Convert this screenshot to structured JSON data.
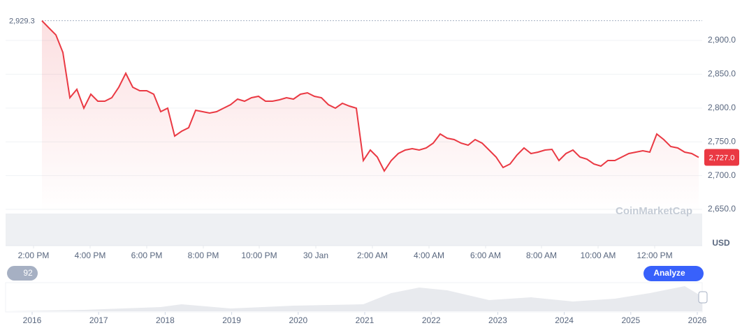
{
  "chart_data": {
    "type": "line",
    "values": [
      2929.3,
      2918.6,
      2908.3,
      2882.4,
      2815.3,
      2827.7,
      2799.8,
      2820.5,
      2810.1,
      2810.1,
      2815.3,
      2830.8,
      2851.5,
      2830.8,
      2825.6,
      2825.6,
      2820.5,
      2794.6,
      2799.8,
      2758.5,
      2765.7,
      2770.9,
      2796.7,
      2794.6,
      2792.6,
      2794.6,
      2799.8,
      2805.0,
      2813.2,
      2810.1,
      2815.3,
      2817.4,
      2810.1,
      2810.1,
      2812.2,
      2815.3,
      2813.2,
      2820.5,
      2822.5,
      2817.4,
      2815.3,
      2805.0,
      2799.8,
      2807.0,
      2802.9,
      2799.8,
      2722.3,
      2737.8,
      2727.5,
      2706.8,
      2722.3,
      2732.7,
      2737.8,
      2739.9,
      2737.8,
      2740.9,
      2748.1,
      2761.6,
      2755.4,
      2753.3,
      2748.1,
      2745.1,
      2753.3,
      2748.1,
      2737.8,
      2727.5,
      2712.0,
      2717.2,
      2730.6,
      2740.9,
      2732.7,
      2734.7,
      2737.8,
      2738.9,
      2722.3,
      2732.7,
      2737.8,
      2727.5,
      2724.4,
      2717.2,
      2714.1,
      2722.3,
      2722.3,
      2727.5,
      2732.7,
      2734.7,
      2736.8,
      2734.7,
      2761.6,
      2753.3,
      2743.0,
      2740.9,
      2734.7,
      2732.7,
      2727.0
    ],
    "color": "#ea3943",
    "xlim": [
      -5.2,
      94.5
    ],
    "xticks": [
      {
        "value": -1.2,
        "label": "2:00 PM"
      },
      {
        "value": 6.9,
        "label": "4:00 PM"
      },
      {
        "value": 15,
        "label": "6:00 PM"
      },
      {
        "value": 23.1,
        "label": "8:00 PM"
      },
      {
        "value": 31.1,
        "label": "10:00 PM"
      },
      {
        "value": 39.2,
        "label": "30 Jan"
      },
      {
        "value": 47.3,
        "label": "2:00 AM"
      },
      {
        "value": 55.4,
        "label": "4:00 AM"
      },
      {
        "value": 63.5,
        "label": "6:00 AM"
      },
      {
        "value": 71.5,
        "label": "8:00 AM"
      },
      {
        "value": 79.6,
        "label": "10:00 AM"
      },
      {
        "value": 87.7,
        "label": "12:00 PM"
      }
    ],
    "ylim": [
      2596.3,
      2949.6
    ],
    "yticks": [
      {
        "value": 2650,
        "label": "2,650.0"
      },
      {
        "value": 2700,
        "label": "2,700.0"
      },
      {
        "value": 2750,
        "label": "2,750.0"
      },
      {
        "value": 2800,
        "label": "2,800.0"
      },
      {
        "value": 2850,
        "label": "2,850.0"
      },
      {
        "value": 2900,
        "label": "2,900.0"
      }
    ],
    "grid": true,
    "reference_line": {
      "value": 2929.3,
      "label": "2,929.3"
    },
    "last_price": {
      "value": 2727.0,
      "label": "2,727.0"
    },
    "unit": "USD",
    "watermark": "CoinMarketCap",
    "navigator_years": [
      "2016",
      "2017",
      "2018",
      "2019",
      "2020",
      "2021",
      "2022",
      "2023",
      "2024",
      "2025",
      "2026"
    ],
    "badge": "92",
    "button": "Analyze"
  }
}
